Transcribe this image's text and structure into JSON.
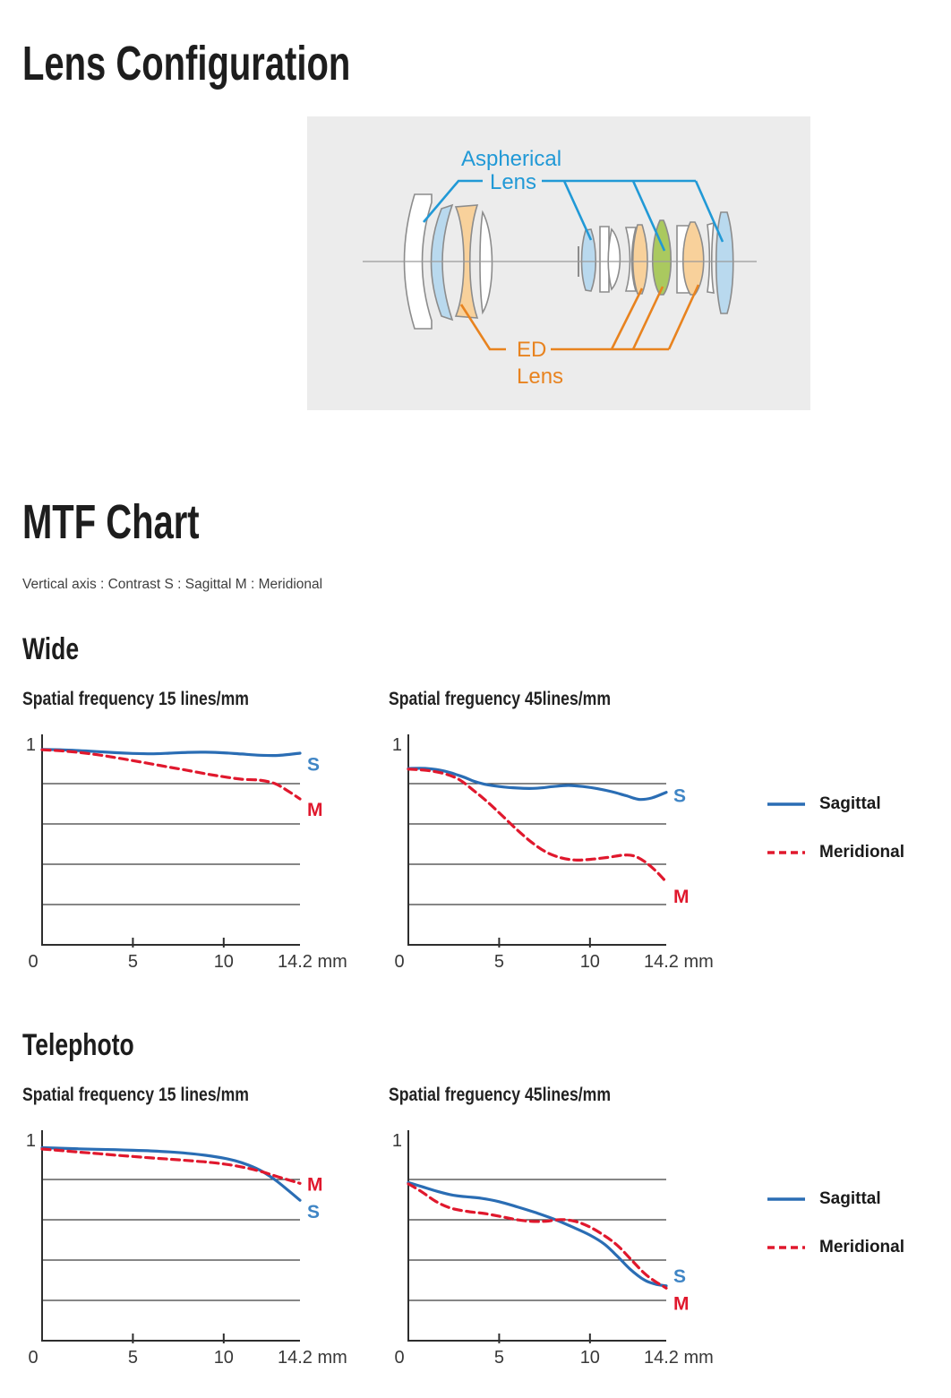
{
  "lens_configuration": {
    "title": "Lens Configuration",
    "diagram": {
      "aspherical_label_line1": "Aspherical",
      "aspherical_label_line2": "Lens",
      "ed_label_line1": "ED",
      "ed_label_line2": "Lens",
      "colors": {
        "aspherical_accent": "#2199d6",
        "ed_accent": "#e8831f",
        "aspherical_glass": "#b9d9ee",
        "ed_glass": "#f8d19b",
        "hybrid_glass": "#aac95f",
        "background": "#ececec"
      }
    }
  },
  "mtf": {
    "title": "MTF Chart",
    "subtitle": "Vertical axis : Contrast S : Sagittal M : Meridional",
    "legend": {
      "sagittal": "Sagittal",
      "meridional": "Meridional",
      "sagittal_color": "#2a6db4",
      "meridional_color": "#e0182d"
    },
    "sections": [
      {
        "name": "Wide",
        "chart_titles": [
          "Spatial frequency 15 lines/mm",
          "Spatial freguency 45lines/mm"
        ]
      },
      {
        "name": "Telephoto",
        "chart_titles": [
          "Spatial frequency 15 lines/mm",
          "Spatial freguency 45lines/mm"
        ]
      }
    ]
  },
  "chart_data": [
    {
      "type": "line",
      "section": "Wide",
      "title": "Spatial frequency 15 lines/mm",
      "xlabel": "mm",
      "ylabel": "Contrast",
      "xlim": [
        0,
        14.2
      ],
      "ylim": [
        0,
        1
      ],
      "x_ticks": [
        0,
        5,
        10
      ],
      "x_end_label": "14.2 mm",
      "y_top_label": "1",
      "gridlines_y": [
        0.2,
        0.4,
        0.6,
        0.8
      ],
      "grid": true,
      "legend_position": "right",
      "series": [
        {
          "name": "Sagittal",
          "letter": "S",
          "style": "solid",
          "color": "#2a6db4",
          "letter_color": "#3f85c5",
          "label_v": 0.9,
          "points": [
            [
              0,
              0.97
            ],
            [
              1,
              0.968
            ],
            [
              2,
              0.964
            ],
            [
              3,
              0.959
            ],
            [
              4,
              0.954
            ],
            [
              5,
              0.95
            ],
            [
              6,
              0.948
            ],
            [
              7,
              0.951
            ],
            [
              8,
              0.955
            ],
            [
              9,
              0.956
            ],
            [
              10,
              0.953
            ],
            [
              11,
              0.947
            ],
            [
              12,
              0.941
            ],
            [
              13,
              0.94
            ],
            [
              14.2,
              0.951
            ]
          ]
        },
        {
          "name": "Meridional",
          "letter": "M",
          "style": "dashed",
          "color": "#e0182d",
          "letter_color": "#e0182d",
          "label_v": 0.675,
          "points": [
            [
              0,
              0.968
            ],
            [
              1,
              0.963
            ],
            [
              2,
              0.955
            ],
            [
              3,
              0.944
            ],
            [
              4,
              0.93
            ],
            [
              5,
              0.914
            ],
            [
              6,
              0.898
            ],
            [
              7,
              0.882
            ],
            [
              8,
              0.866
            ],
            [
              9,
              0.849
            ],
            [
              10,
              0.834
            ],
            [
              11,
              0.822
            ],
            [
              12,
              0.817
            ],
            [
              12.8,
              0.801
            ],
            [
              13.5,
              0.766
            ],
            [
              14.2,
              0.724
            ]
          ]
        }
      ]
    },
    {
      "type": "line",
      "section": "Wide",
      "title": "Spatial freguency 45lines/mm",
      "xlabel": "mm",
      "ylabel": "Contrast",
      "xlim": [
        0,
        14.2
      ],
      "ylim": [
        0,
        1
      ],
      "x_ticks": [
        0,
        5,
        10
      ],
      "x_end_label": "14.2 mm",
      "y_top_label": "1",
      "gridlines_y": [
        0.2,
        0.4,
        0.6,
        0.8
      ],
      "grid": true,
      "legend_position": "right",
      "series": [
        {
          "name": "Sagittal",
          "letter": "S",
          "style": "solid",
          "color": "#2a6db4",
          "letter_color": "#3f85c5",
          "label_v": 0.745,
          "points": [
            [
              0,
              0.875
            ],
            [
              1,
              0.875
            ],
            [
              2,
              0.862
            ],
            [
              3,
              0.834
            ],
            [
              3.6,
              0.812
            ],
            [
              4.2,
              0.797
            ],
            [
              5,
              0.786
            ],
            [
              6,
              0.778
            ],
            [
              7,
              0.777
            ],
            [
              8,
              0.786
            ],
            [
              8.8,
              0.791
            ],
            [
              9.6,
              0.786
            ],
            [
              10.4,
              0.775
            ],
            [
              11.2,
              0.76
            ],
            [
              12,
              0.74
            ],
            [
              12.7,
              0.722
            ],
            [
              13.4,
              0.729
            ],
            [
              14.2,
              0.757
            ]
          ]
        },
        {
          "name": "Meridional",
          "letter": "M",
          "style": "dashed",
          "color": "#e0182d",
          "letter_color": "#e0182d",
          "label_v": 0.245,
          "points": [
            [
              0,
              0.872
            ],
            [
              1,
              0.866
            ],
            [
              2,
              0.849
            ],
            [
              2.8,
              0.82
            ],
            [
              3.6,
              0.766
            ],
            [
              4.4,
              0.706
            ],
            [
              5.2,
              0.638
            ],
            [
              6,
              0.57
            ],
            [
              6.8,
              0.508
            ],
            [
              7.6,
              0.46
            ],
            [
              8.4,
              0.432
            ],
            [
              9.2,
              0.421
            ],
            [
              10,
              0.424
            ],
            [
              11,
              0.434
            ],
            [
              11.8,
              0.445
            ],
            [
              12.4,
              0.442
            ],
            [
              13,
              0.414
            ],
            [
              13.6,
              0.369
            ],
            [
              14.2,
              0.312
            ]
          ]
        }
      ]
    },
    {
      "type": "line",
      "section": "Telephoto",
      "title": "Spatial frequency 15 lines/mm",
      "xlabel": "mm",
      "ylabel": "Contrast",
      "xlim": [
        0,
        14.2
      ],
      "ylim": [
        0,
        1
      ],
      "x_ticks": [
        0,
        5,
        10
      ],
      "x_end_label": "14.2 mm",
      "y_top_label": "1",
      "gridlines_y": [
        0.2,
        0.4,
        0.6,
        0.8
      ],
      "grid": true,
      "legend_position": "right",
      "series": [
        {
          "name": "Sagittal",
          "letter": "S",
          "style": "solid",
          "color": "#2a6db4",
          "letter_color": "#3f85c5",
          "label_v": 0.645,
          "points": [
            [
              0,
              0.958
            ],
            [
              1,
              0.955
            ],
            [
              2,
              0.952
            ],
            [
              3,
              0.95
            ],
            [
              4,
              0.948
            ],
            [
              5,
              0.945
            ],
            [
              6,
              0.942
            ],
            [
              7,
              0.937
            ],
            [
              8,
              0.93
            ],
            [
              9,
              0.92
            ],
            [
              10,
              0.906
            ],
            [
              11,
              0.883
            ],
            [
              12,
              0.846
            ],
            [
              12.8,
              0.8
            ],
            [
              13.5,
              0.75
            ],
            [
              14.2,
              0.697
            ]
          ]
        },
        {
          "name": "Meridional",
          "letter": "M",
          "style": "dashed",
          "color": "#e0182d",
          "letter_color": "#e0182d",
          "label_v": 0.78,
          "points": [
            [
              0,
              0.951
            ],
            [
              1,
              0.944
            ],
            [
              2,
              0.936
            ],
            [
              3,
              0.929
            ],
            [
              4,
              0.921
            ],
            [
              5,
              0.914
            ],
            [
              6,
              0.907
            ],
            [
              7,
              0.901
            ],
            [
              8,
              0.894
            ],
            [
              9,
              0.887
            ],
            [
              10,
              0.877
            ],
            [
              11,
              0.862
            ],
            [
              12,
              0.841
            ],
            [
              13,
              0.813
            ],
            [
              14.2,
              0.781
            ]
          ]
        }
      ]
    },
    {
      "type": "line",
      "section": "Telephoto",
      "title": "Spatial freguency 45lines/mm",
      "xlabel": "mm",
      "ylabel": "Contrast",
      "xlim": [
        0,
        14.2
      ],
      "ylim": [
        0,
        1
      ],
      "x_ticks": [
        0,
        5,
        10
      ],
      "x_end_label": "14.2 mm",
      "y_top_label": "1",
      "gridlines_y": [
        0.2,
        0.4,
        0.6,
        0.8
      ],
      "grid": true,
      "legend_position": "right",
      "series": [
        {
          "name": "Sagittal",
          "letter": "S",
          "style": "solid",
          "color": "#2a6db4",
          "letter_color": "#3f85c5",
          "label_v": 0.325,
          "points": [
            [
              0,
              0.785
            ],
            [
              0.8,
              0.763
            ],
            [
              1.6,
              0.741
            ],
            [
              2.4,
              0.723
            ],
            [
              3.2,
              0.714
            ],
            [
              4,
              0.707
            ],
            [
              5,
              0.69
            ],
            [
              6,
              0.664
            ],
            [
              7,
              0.636
            ],
            [
              8,
              0.604
            ],
            [
              9,
              0.566
            ],
            [
              10,
              0.524
            ],
            [
              10.8,
              0.479
            ],
            [
              11.5,
              0.42
            ],
            [
              12.2,
              0.356
            ],
            [
              13,
              0.301
            ],
            [
              13.6,
              0.281
            ],
            [
              14.2,
              0.272
            ]
          ]
        },
        {
          "name": "Meridional",
          "letter": "M",
          "style": "dashed",
          "color": "#e0182d",
          "letter_color": "#e0182d",
          "label_v": 0.19,
          "points": [
            [
              0,
              0.778
            ],
            [
              0.7,
              0.741
            ],
            [
              1.5,
              0.692
            ],
            [
              2.3,
              0.659
            ],
            [
              3.2,
              0.642
            ],
            [
              4.2,
              0.631
            ],
            [
              5.2,
              0.614
            ],
            [
              6,
              0.6
            ],
            [
              6.8,
              0.592
            ],
            [
              7.6,
              0.593
            ],
            [
              8.4,
              0.601
            ],
            [
              9.2,
              0.592
            ],
            [
              10,
              0.564
            ],
            [
              10.8,
              0.521
            ],
            [
              11.5,
              0.474
            ],
            [
              12.2,
              0.409
            ],
            [
              13,
              0.334
            ],
            [
              13.6,
              0.294
            ],
            [
              14.2,
              0.261
            ]
          ]
        }
      ]
    }
  ]
}
